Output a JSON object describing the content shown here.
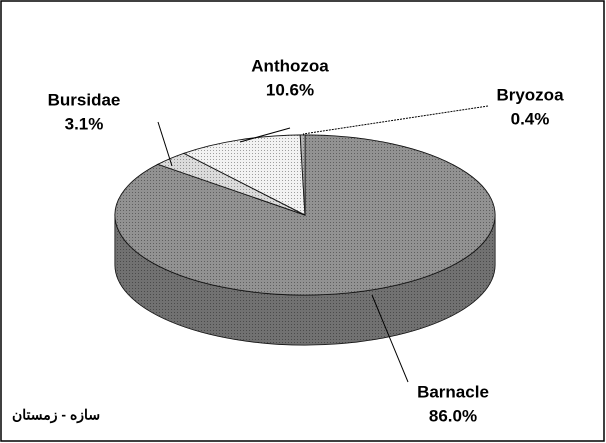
{
  "chart_data": {
    "type": "pie",
    "categories": [
      "Barnacle",
      "Bursidae",
      "Anthozoa",
      "Bryozoa"
    ],
    "values": [
      86.0,
      3.1,
      10.6,
      0.4
    ],
    "value_labels": [
      "86.0%",
      "3.1%",
      "10.6%",
      "0.4%"
    ],
    "colors": [
      "#6e6e6e",
      "#cfcfcf",
      "#eeeeee",
      "#9a9a9a"
    ],
    "annotation": "سازه - زمستان"
  }
}
